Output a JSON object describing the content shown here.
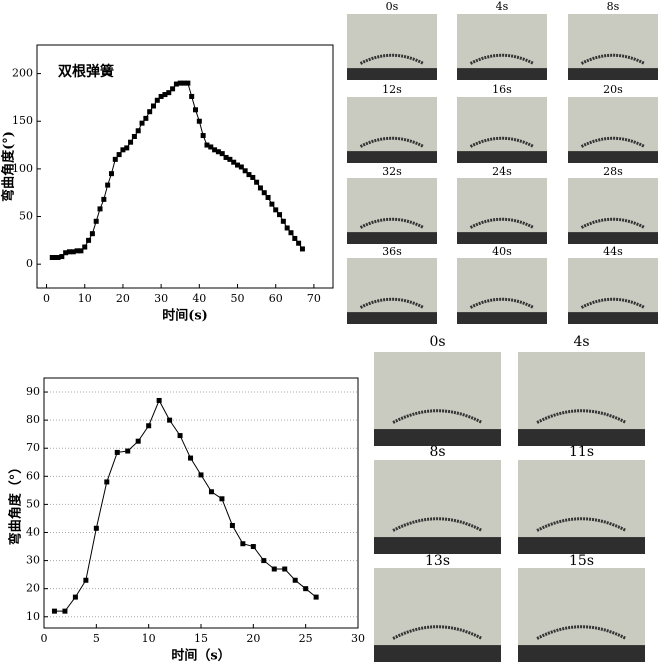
{
  "chart_data": [
    {
      "type": "line",
      "annotation": "双根弹簧",
      "x_label": "时间(s)",
      "y_label": "弯曲角度(°)",
      "color": "#000000",
      "grid": false,
      "x": [
        1.5,
        2,
        3,
        4,
        5,
        6,
        7,
        8,
        9,
        10,
        11,
        12,
        13,
        14,
        15,
        16,
        17,
        18,
        19,
        20,
        21,
        22,
        23,
        24,
        25,
        26,
        27,
        28,
        29,
        30,
        31,
        32,
        33,
        34,
        35,
        36,
        37,
        38,
        39,
        40,
        41,
        42,
        43,
        44,
        45,
        46,
        47,
        48,
        49,
        50,
        51,
        52,
        53,
        54,
        55,
        56,
        57,
        58,
        59,
        60,
        61,
        62,
        63,
        64,
        65,
        66,
        67
      ],
      "values": [
        7,
        7,
        7,
        8,
        12,
        13,
        13,
        14,
        14,
        18,
        25,
        32,
        45,
        58,
        68,
        83,
        95,
        110,
        115,
        120,
        122,
        128,
        134,
        140,
        148,
        153,
        160,
        166,
        172,
        176,
        178,
        180,
        184,
        189,
        190,
        190,
        190,
        176,
        162,
        150,
        135,
        125,
        123,
        120,
        118,
        116,
        112,
        110,
        107,
        104,
        102,
        98,
        94,
        91,
        86,
        80,
        75,
        70,
        63,
        57,
        52,
        45,
        38,
        33,
        27,
        22,
        16
      ],
      "xlim": [
        -2.5,
        75
      ],
      "xticks": [
        0,
        10,
        20,
        30,
        40,
        50,
        60,
        70
      ],
      "ylim": [
        -25,
        230
      ],
      "yticks": [
        0,
        50,
        100,
        150,
        200
      ]
    },
    {
      "type": "line",
      "x_label": "时间（s）",
      "y_label": "弯曲角度（°）",
      "color": "#000000",
      "grid": true,
      "x": [
        1,
        2,
        3,
        4,
        5,
        6,
        7,
        8,
        9,
        10,
        11,
        12,
        13,
        14,
        15,
        16,
        17,
        18,
        19,
        20,
        21,
        22,
        23,
        24,
        25,
        26
      ],
      "values": [
        12,
        12,
        17,
        23,
        41.5,
        58,
        68.5,
        69,
        72.5,
        78,
        87,
        80,
        74.5,
        66.5,
        60.5,
        54.5,
        52,
        42.5,
        36,
        35,
        30,
        27,
        27,
        23,
        20,
        17
      ],
      "xlim": [
        0,
        30
      ],
      "xticks": [
        0,
        5,
        10,
        15,
        20,
        25,
        30
      ],
      "ylim": [
        6,
        95
      ],
      "yticks": [
        10,
        20,
        30,
        40,
        50,
        60,
        70,
        80,
        90
      ]
    }
  ],
  "photos_top": [
    "0s",
    "4s",
    "8s",
    "12s",
    "16s",
    "20s",
    "32s",
    "24s",
    "28s",
    "36s",
    "40s",
    "44s"
  ],
  "photos_bottom": [
    "0s",
    "4s",
    "8s",
    "11s",
    "13s",
    "15s"
  ]
}
